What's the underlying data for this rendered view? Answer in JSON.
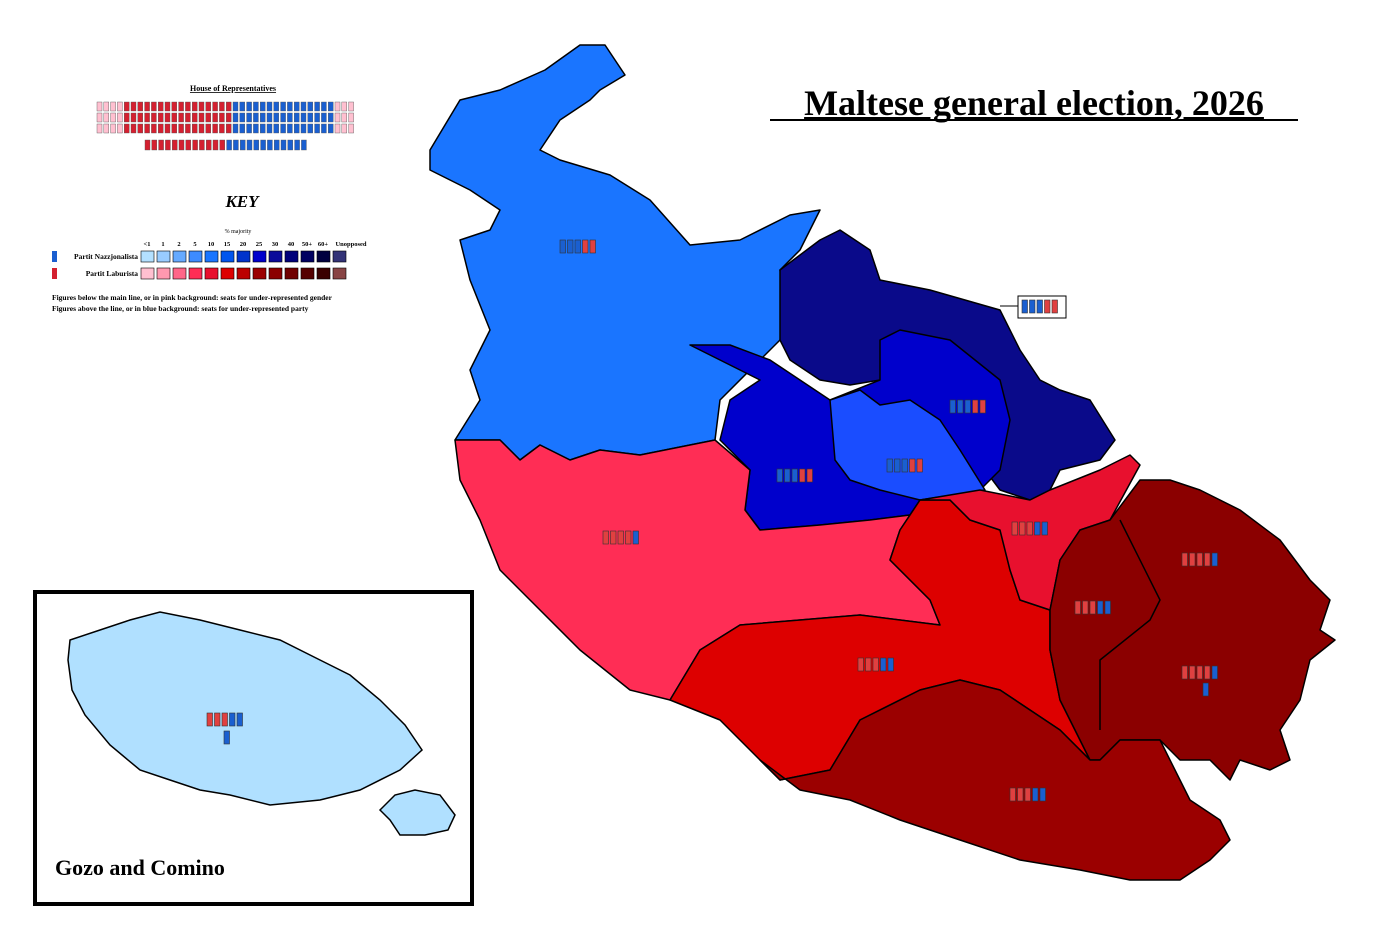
{
  "title": "Maltese general election, 2026",
  "parliament": {
    "title": "House of Representatives"
  },
  "key": {
    "title": "KEY",
    "scale_title": "% majority",
    "scale": [
      "<1",
      "1",
      "2",
      "5",
      "10",
      "15",
      "20",
      "25",
      "30",
      "40",
      "50+",
      "60+",
      "Unopposed"
    ],
    "parties": [
      {
        "name": "Partit Nazzjonalista",
        "colors": [
          "#b3e0ff",
          "#99ccff",
          "#66aaff",
          "#3d8bff",
          "#1a75ff",
          "#0055ee",
          "#0033cc",
          "#0000cc",
          "#0a0a9a",
          "#00007a",
          "#000060",
          "#00003f",
          "#333377"
        ]
      },
      {
        "name": "Partit Laburista",
        "colors": [
          "#ffc0d0",
          "#ff99b0",
          "#ff6688",
          "#ff2d55",
          "#e8102e",
          "#dd0000",
          "#bb0000",
          "#9b0000",
          "#8b0000",
          "#700000",
          "#550000",
          "#3a0000",
          "#884444"
        ]
      }
    ],
    "notes": [
      "Figures below the main line, or in pink background: seats for under-represented gender",
      "Figures above the line, or in blue background: seats for under-represented party"
    ]
  },
  "inset": {
    "label": "Gozo and Comino"
  }
}
